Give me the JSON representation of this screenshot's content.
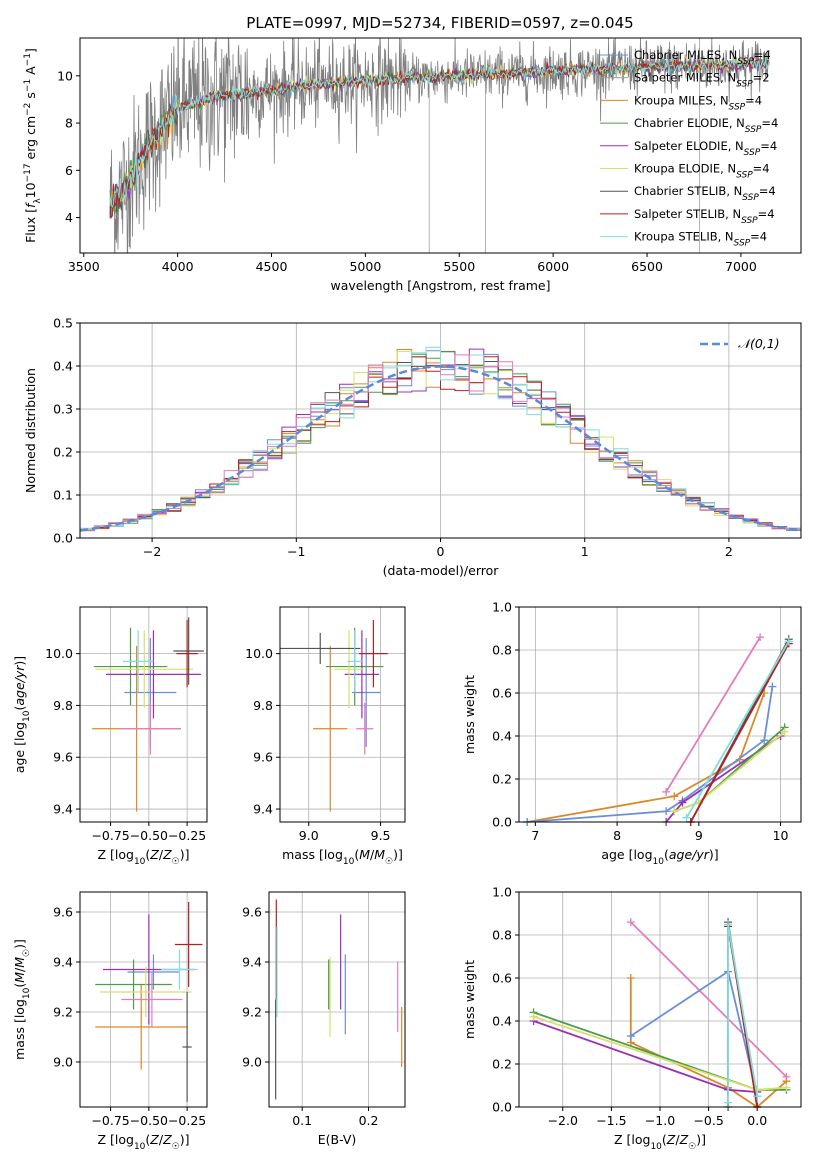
{
  "figure": {
    "title": "PLATE=0997, MJD=52734, FIBERID=0597, z=0.045"
  },
  "legend": [
    {
      "label": "Chabrier MILES, N_SSP=4",
      "color": "#6a8fd8"
    },
    {
      "label": "Salpeter MILES, N_SSP=2",
      "color": "#9a9a9a"
    },
    {
      "label": "Kroupa MILES, N_SSP=4",
      "color": "#d88a2a"
    },
    {
      "label": "Chabrier ELODIE, N_SSP=4",
      "color": "#4e9a4e"
    },
    {
      "label": "Salpeter ELODIE, N_SSP=4",
      "color": "#9b30b8"
    },
    {
      "label": "Kroupa ELODIE, N_SSP=4",
      "color": "#d6e06a"
    },
    {
      "label": "Chabrier STELIB, N_SSP=4",
      "color": "#555555"
    },
    {
      "label": "Salpeter STELIB, N_SSP=4",
      "color": "#b22222"
    },
    {
      "label": "Kroupa STELIB, N_SSP=4",
      "color": "#7fdede"
    }
  ],
  "chart_data": [
    {
      "id": "spectrum",
      "type": "line",
      "title": "PLATE=0997, MJD=52734, FIBERID=0597, z=0.045",
      "xlabel": "wavelength [Angstrom, rest frame]",
      "ylabel": "Flux [f_λ 10^-17 erg cm^-2 s^-1 A^-1]",
      "xlim": [
        3480,
        7320
      ],
      "ylim": [
        2.5,
        11.6
      ],
      "xticks": [
        3500,
        4000,
        4500,
        5000,
        5500,
        6000,
        6500,
        7000
      ],
      "yticks": [
        4,
        6,
        8,
        10
      ],
      "grid": false,
      "legend_position": "upper-right",
      "data_envelope": {
        "x": [
          3640,
          3700,
          3800,
          3900,
          4000,
          4200,
          4500,
          4800,
          5000,
          5200,
          5500,
          5800,
          6000,
          6300,
          6600,
          6900,
          7150
        ],
        "model": [
          4.6,
          5.0,
          6.4,
          7.7,
          8.6,
          9.1,
          9.4,
          9.7,
          9.8,
          9.9,
          10.0,
          10.1,
          10.2,
          10.3,
          10.4,
          10.45,
          10.5
        ]
      }
    },
    {
      "id": "residuals",
      "type": "line",
      "xlabel": "(data-model)/error",
      "ylabel": "Normed distribution",
      "xlim": [
        -2.5,
        2.5
      ],
      "ylim": [
        0,
        0.5
      ],
      "xticks": [
        -2,
        -1,
        0,
        1,
        2
      ],
      "yticks": [
        0.0,
        0.1,
        0.2,
        0.3,
        0.4,
        0.5
      ],
      "grid": true,
      "legend_position": "upper-right",
      "reference_label": "𝒩(0,1)",
      "bins_start": -2.5,
      "bin_width": 0.1
    },
    {
      "id": "age-vs-z",
      "type": "scatter",
      "xlabel": "Z [log10(Z/Z☉)]",
      "ylabel": "age  [log10(age/yr)]",
      "xlim": [
        -0.95,
        -0.12
      ],
      "ylim": [
        9.35,
        10.18
      ],
      "xticks": [
        -0.75,
        -0.5,
        -0.25
      ],
      "xticklabels": [
        "−0.75",
        "−0.50",
        "−0.25"
      ],
      "yticks": [
        9.4,
        9.6,
        9.8,
        10.0
      ],
      "grid": true,
      "points": [
        {
          "x": -0.49,
          "y": 9.85,
          "xerr": 0.17,
          "yerr": 0.21,
          "color": "#6a8fd8"
        },
        {
          "x": -0.58,
          "y": 9.71,
          "xerr": 0.29,
          "yerr": 0.32,
          "color": "#d88a2a"
        },
        {
          "x": -0.62,
          "y": 9.95,
          "xerr": 0.24,
          "yerr": 0.15,
          "color": "#4e9a4e"
        },
        {
          "x": -0.47,
          "y": 9.92,
          "xerr": 0.31,
          "yerr": 0.17,
          "color": "#9b30b8"
        },
        {
          "x": -0.53,
          "y": 9.94,
          "xerr": 0.32,
          "yerr": 0.15,
          "color": "#d6e06a"
        },
        {
          "x": -0.24,
          "y": 10.01,
          "xerr": 0.1,
          "yerr": 0.13,
          "color": "#555555"
        },
        {
          "x": -0.25,
          "y": 10.0,
          "xerr": 0.07,
          "yerr": 0.13,
          "color": "#b22222"
        },
        {
          "x": -0.49,
          "y": 9.71,
          "xerr": 0.2,
          "yerr": 0.1,
          "color": "#e37cbf"
        },
        {
          "x": -0.57,
          "y": 9.97,
          "xerr": 0.1,
          "yerr": 0.12,
          "color": "#7fdede"
        }
      ]
    },
    {
      "id": "age-vs-mass",
      "type": "scatter",
      "xlabel": "mass [log10(M/M☉)]",
      "ylabel": "",
      "xlim": [
        8.8,
        9.67
      ],
      "ylim": [
        9.35,
        10.18
      ],
      "xticks": [
        9.0,
        9.5
      ],
      "xticklabels": [
        "9.0",
        "9.5"
      ],
      "yticks": [
        9.4,
        9.6,
        9.8,
        10.0
      ],
      "grid": true,
      "points": [
        {
          "x": 9.4,
          "y": 9.85,
          "xerr": 0.1,
          "yerr": 0.21,
          "color": "#6a8fd8"
        },
        {
          "x": 9.15,
          "y": 9.71,
          "xerr": 0.12,
          "yerr": 0.32,
          "color": "#d88a2a"
        },
        {
          "x": 9.32,
          "y": 9.95,
          "xerr": 0.2,
          "yerr": 0.15,
          "color": "#4e9a4e"
        },
        {
          "x": 9.37,
          "y": 9.92,
          "xerr": 0.12,
          "yerr": 0.17,
          "color": "#9b30b8"
        },
        {
          "x": 9.28,
          "y": 9.94,
          "xerr": 0.1,
          "yerr": 0.15,
          "color": "#d6e06a"
        },
        {
          "x": 9.08,
          "y": 10.02,
          "xerr": 0.28,
          "yerr": 0.06,
          "color": "#555555"
        },
        {
          "x": 9.45,
          "y": 10.0,
          "xerr": 0.1,
          "yerr": 0.13,
          "color": "#b22222"
        },
        {
          "x": 9.39,
          "y": 9.71,
          "xerr": 0.06,
          "yerr": 0.1,
          "color": "#e37cbf"
        },
        {
          "x": 9.32,
          "y": 9.97,
          "xerr": 0.05,
          "yerr": 0.12,
          "color": "#7fdede"
        }
      ]
    },
    {
      "id": "massweight-vs-age",
      "type": "line",
      "xlabel": "age  [log10(age/yr)]",
      "ylabel": "mass weight",
      "xlim": [
        6.8,
        10.25
      ],
      "ylim": [
        0,
        1
      ],
      "xticks": [
        7,
        8,
        9,
        10
      ],
      "yticks": [
        0.0,
        0.2,
        0.4,
        0.6,
        0.8,
        1.0
      ],
      "grid": true,
      "series": [
        {
          "color": "#e37cbf",
          "x": [
            8.6,
            9.75
          ],
          "y": [
            0.14,
            0.86
          ]
        },
        {
          "color": "#d88a2a",
          "x": [
            6.9,
            8.7,
            9.5,
            9.8
          ],
          "y": [
            0.0,
            0.12,
            0.29,
            0.6
          ]
        },
        {
          "color": "#6a8fd8",
          "x": [
            6.9,
            8.6,
            8.8,
            9.8,
            9.9
          ],
          "y": [
            0.0,
            0.05,
            0.1,
            0.38,
            0.63
          ]
        },
        {
          "color": "#9b30b8",
          "x": [
            8.6,
            8.8,
            10.0
          ],
          "y": [
            0.0,
            0.09,
            0.4
          ]
        },
        {
          "color": "#4e9a4e",
          "x": [
            8.7,
            9.0,
            10.05
          ],
          "y": [
            0.05,
            0.09,
            0.44
          ]
        },
        {
          "color": "#d6e06a",
          "x": [
            8.7,
            9.0,
            10.05
          ],
          "y": [
            0.05,
            0.09,
            0.42
          ]
        },
        {
          "color": "#555555",
          "x": [
            8.9,
            10.1
          ],
          "y": [
            0.0,
            0.85
          ]
        },
        {
          "color": "#b22222",
          "x": [
            8.9,
            10.1
          ],
          "y": [
            0.0,
            0.83
          ]
        },
        {
          "color": "#7fdede",
          "x": [
            8.85,
            10.1
          ],
          "y": [
            0.02,
            0.84
          ]
        }
      ]
    },
    {
      "id": "mass-vs-z",
      "type": "scatter",
      "xlabel": "Z [log10(Z/Z☉)]",
      "ylabel": "mass [log10(M/M☉)]",
      "xlim": [
        -0.95,
        -0.12
      ],
      "ylim": [
        8.82,
        9.68
      ],
      "xticks": [
        -0.75,
        -0.5,
        -0.25
      ],
      "xticklabels": [
        "−0.75",
        "−0.50",
        "−0.25"
      ],
      "yticks": [
        9.0,
        9.2,
        9.4,
        9.6
      ],
      "grid": true,
      "points": [
        {
          "x": -0.47,
          "y": 9.36,
          "xerr": 0.17,
          "yerr": 0.07,
          "color": "#6a8fd8"
        },
        {
          "x": -0.55,
          "y": 9.14,
          "xerr": 0.3,
          "yerr": 0.17,
          "color": "#d88a2a"
        },
        {
          "x": -0.6,
          "y": 9.31,
          "xerr": 0.25,
          "yerr": 0.1,
          "color": "#4e9a4e"
        },
        {
          "x": -0.5,
          "y": 9.37,
          "xerr": 0.3,
          "yerr": 0.22,
          "color": "#9b30b8"
        },
        {
          "x": -0.52,
          "y": 9.28,
          "xerr": 0.3,
          "yerr": 0.1,
          "color": "#d6e06a"
        },
        {
          "x": -0.25,
          "y": 9.06,
          "xerr": 0.03,
          "yerr": 0.22,
          "color": "#555555"
        },
        {
          "x": -0.24,
          "y": 9.47,
          "xerr": 0.09,
          "yerr": 0.17,
          "color": "#b22222"
        },
        {
          "x": -0.48,
          "y": 9.25,
          "xerr": 0.2,
          "yerr": 0.11,
          "color": "#e37cbf"
        },
        {
          "x": -0.3,
          "y": 9.37,
          "xerr": 0.12,
          "yerr": 0.08,
          "color": "#7fdede"
        }
      ]
    },
    {
      "id": "mass-vs-ebv",
      "type": "scatter",
      "xlabel": "E(B-V)",
      "ylabel": "",
      "xlim": [
        0.05,
        0.255
      ],
      "ylim": [
        8.82,
        9.68
      ],
      "xticks": [
        0.1,
        0.2
      ],
      "xticklabels": [
        "0.1",
        "0.2"
      ],
      "yticks": [
        9.0,
        9.2,
        9.4,
        9.6
      ],
      "grid": true,
      "points": [
        {
          "x": 0.165,
          "y": 9.27,
          "xerr": 0,
          "yerr": 0.16,
          "color": "#6a8fd8"
        },
        {
          "x": 0.25,
          "y": 9.1,
          "xerr": 0,
          "yerr": 0.12,
          "color": "#d88a2a"
        },
        {
          "x": 0.14,
          "y": 9.31,
          "xerr": 0,
          "yerr": 0.1,
          "color": "#4e9a4e"
        },
        {
          "x": 0.158,
          "y": 9.4,
          "xerr": 0,
          "yerr": 0.19,
          "color": "#9b30b8"
        },
        {
          "x": 0.142,
          "y": 9.26,
          "xerr": 0,
          "yerr": 0.16,
          "color": "#d6e06a"
        },
        {
          "x": 0.06,
          "y": 9.05,
          "xerr": 0,
          "yerr": 0.2,
          "color": "#555555"
        },
        {
          "x": 0.061,
          "y": 9.45,
          "xerr": 0,
          "yerr": 0.2,
          "color": "#b22222"
        },
        {
          "x": 0.244,
          "y": 9.26,
          "xerr": 0,
          "yerr": 0.14,
          "color": "#e37cbf"
        },
        {
          "x": 0.062,
          "y": 9.36,
          "xerr": 0,
          "yerr": 0.18,
          "color": "#7fdede"
        }
      ]
    },
    {
      "id": "massweight-vs-z",
      "type": "line",
      "xlabel": "Z [log10(Z/Z☉)]",
      "ylabel": "mass weight",
      "xlim": [
        -2.45,
        0.45
      ],
      "ylim": [
        0,
        1
      ],
      "xticks": [
        -2.0,
        -1.5,
        -1.0,
        -0.5,
        0.0
      ],
      "xticklabels": [
        "−2.0",
        "−1.5",
        "−1.0",
        "−0.5",
        "0.0"
      ],
      "yticks": [
        0.0,
        0.2,
        0.4,
        0.6,
        0.8,
        1.0
      ],
      "grid": true,
      "series": [
        {
          "color": "#e37cbf",
          "x": [
            -1.3,
            0.3
          ],
          "y": [
            0.86,
            0.14
          ]
        },
        {
          "color": "#d88a2a",
          "x": [
            -1.3,
            -1.3,
            -0.3,
            0.0,
            0.3
          ],
          "y": [
            0.6,
            0.3,
            0.09,
            0.0,
            0.12
          ]
        },
        {
          "color": "#6a8fd8",
          "x": [
            -1.3,
            -0.3,
            0.0
          ],
          "y": [
            0.33,
            0.63,
            0.05
          ]
        },
        {
          "color": "#9b30b8",
          "x": [
            -2.3,
            -0.3,
            0.0
          ],
          "y": [
            0.4,
            0.08,
            0.07
          ]
        },
        {
          "color": "#4e9a4e",
          "x": [
            -2.3,
            0.0,
            0.3
          ],
          "y": [
            0.44,
            0.08,
            0.08
          ]
        },
        {
          "color": "#d6e06a",
          "x": [
            -2.3,
            0.0,
            0.3
          ],
          "y": [
            0.42,
            0.08,
            0.09
          ]
        },
        {
          "color": "#555555",
          "x": [
            -0.3,
            -0.3,
            0.0
          ],
          "y": [
            0.0,
            0.86,
            0.0
          ]
        },
        {
          "color": "#b22222",
          "x": [
            -0.3,
            0.0
          ],
          "y": [
            0.84,
            0.0
          ]
        },
        {
          "color": "#7fdede",
          "x": [
            -0.3,
            -0.3,
            0.0
          ],
          "y": [
            0.02,
            0.85,
            0.05
          ]
        }
      ]
    }
  ]
}
